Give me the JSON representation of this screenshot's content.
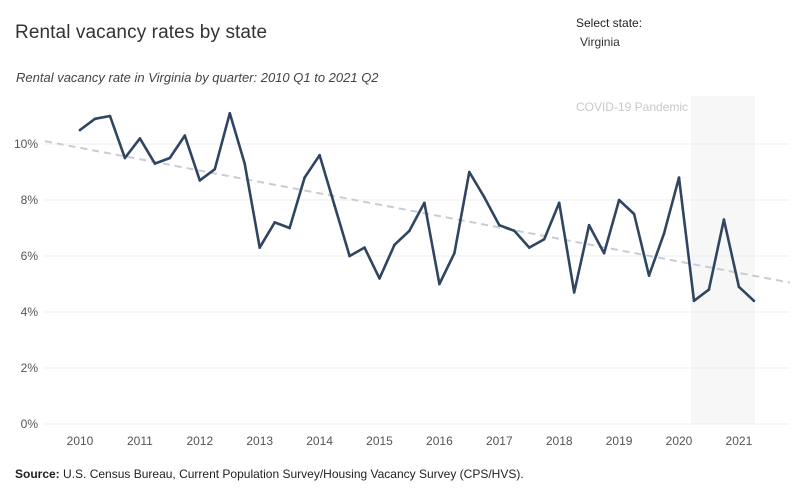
{
  "title": "Rental vacancy rates by state",
  "subtitle": "Rental vacancy rate in Virginia by quarter: 2010 Q1 to 2021 Q2",
  "state_selector": {
    "label": "Select state:",
    "value": "Virginia"
  },
  "source": {
    "label": "Source:",
    "text": " U.S. Census Bureau, Current Population Survey/Housing Vacancy Survey (CPS/HVS)."
  },
  "colors": {
    "line": "#2f4560",
    "trend": "#c7cdd6",
    "pandemic_band": "#f7f7f7",
    "grid": "#eeeeee"
  },
  "chart_data": {
    "type": "line",
    "title": "Rental vacancy rates by state",
    "x_ticks": [
      "2010",
      "2011",
      "2012",
      "2013",
      "2014",
      "2015",
      "2016",
      "2017",
      "2018",
      "2019",
      "2020",
      "2021"
    ],
    "y_ticks": [
      "0%",
      "2%",
      "4%",
      "6%",
      "8%",
      "10%"
    ],
    "ylim": [
      0,
      11.5
    ],
    "x": [
      "2010 Q1",
      "2010 Q2",
      "2010 Q3",
      "2010 Q4",
      "2011 Q1",
      "2011 Q2",
      "2011 Q3",
      "2011 Q4",
      "2012 Q1",
      "2012 Q2",
      "2012 Q3",
      "2012 Q4",
      "2013 Q1",
      "2013 Q2",
      "2013 Q3",
      "2013 Q4",
      "2014 Q1",
      "2014 Q2",
      "2014 Q3",
      "2014 Q4",
      "2015 Q1",
      "2015 Q2",
      "2015 Q3",
      "2015 Q4",
      "2016 Q1",
      "2016 Q2",
      "2016 Q3",
      "2016 Q4",
      "2017 Q1",
      "2017 Q2",
      "2017 Q3",
      "2017 Q4",
      "2018 Q1",
      "2018 Q2",
      "2018 Q3",
      "2018 Q4",
      "2019 Q1",
      "2019 Q2",
      "2019 Q3",
      "2019 Q4",
      "2020 Q1",
      "2020 Q2",
      "2020 Q3",
      "2020 Q4",
      "2021 Q1",
      "2021 Q2"
    ],
    "series": [
      {
        "values": [
          10.5,
          10.9,
          11.0,
          9.5,
          10.2,
          9.3,
          9.5,
          10.3,
          8.7,
          9.1,
          11.1,
          9.3,
          6.3,
          7.2,
          7.0,
          8.8,
          9.6,
          7.8,
          6.0,
          6.3,
          5.2,
          6.4,
          6.9,
          7.9,
          5.0,
          6.1,
          9.0,
          8.1,
          7.1,
          6.9,
          6.3,
          6.6,
          7.9,
          4.7,
          7.1,
          6.1,
          8.0,
          7.5,
          5.3,
          6.8,
          8.8,
          4.4,
          4.8,
          7.3,
          4.9,
          4.4
        ]
      }
    ],
    "trendline": {
      "style": "dashed",
      "start_value": 10.1,
      "end_value": 5.05
    },
    "annotation": {
      "text": "COVID-19 Pandemic",
      "start": "2020 Q2",
      "end": "2021 Q2"
    },
    "grid": true
  }
}
